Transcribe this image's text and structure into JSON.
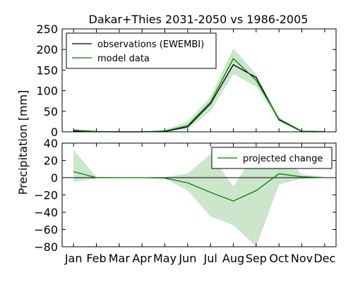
{
  "chart_data": [
    {
      "type": "line",
      "title": "Dakar+Thies 2031-2050 vs 1986-2005",
      "ylabel": "Precipitation [mm]",
      "ylim": [
        0,
        250
      ],
      "yticks": [
        0,
        50,
        100,
        150,
        200,
        250
      ],
      "categories": [
        "Jan",
        "Feb",
        "Mar",
        "Apr",
        "May",
        "Jun",
        "Jul",
        "Aug",
        "Sep",
        "Oct",
        "Nov",
        "Dec"
      ],
      "legend_position": "top-left",
      "series": [
        {
          "name": "observations (EWEMBI)",
          "color": "#000000",
          "values": [
            2,
            0.5,
            0,
            0,
            1,
            12,
            68,
            163,
            132,
            29,
            1,
            0.5
          ]
        },
        {
          "name": "model data",
          "color": "#008000",
          "values": [
            4,
            1,
            0,
            0,
            2,
            15,
            72,
            178,
            125,
            31,
            1.5,
            0.5
          ]
        }
      ],
      "band": {
        "color": "#008000",
        "low": [
          0,
          0,
          0,
          0,
          0,
          6,
          50,
          140,
          110,
          25,
          0,
          0
        ],
        "high": [
          6,
          2,
          0.5,
          1,
          4,
          25,
          85,
          203,
          140,
          36,
          3,
          1
        ]
      }
    },
    {
      "type": "line",
      "ylim": [
        -80,
        40
      ],
      "yticks": [
        -80,
        -60,
        -40,
        -20,
        0,
        20,
        40
      ],
      "categories": [
        "Jan",
        "Feb",
        "Mar",
        "Apr",
        "May",
        "Jun",
        "Jul",
        "Aug",
        "Sep",
        "Oct",
        "Nov",
        "Dec"
      ],
      "legend_position": "top-right",
      "zero_line": true,
      "series": [
        {
          "name": "projected change",
          "color": "#008000",
          "values": [
            7,
            0,
            0,
            0,
            -0.5,
            -6,
            -17,
            -27,
            -15,
            4.5,
            1,
            0
          ]
        }
      ],
      "band": {
        "color": "#008000",
        "low": [
          -5,
          -1,
          -0.5,
          -0.5,
          -1,
          -15,
          -45,
          -55,
          -80,
          -8,
          -1,
          -0.5
        ],
        "high": [
          32,
          1,
          0.5,
          0.5,
          0.5,
          5,
          27,
          -10,
          30,
          30,
          4,
          1
        ]
      }
    }
  ]
}
